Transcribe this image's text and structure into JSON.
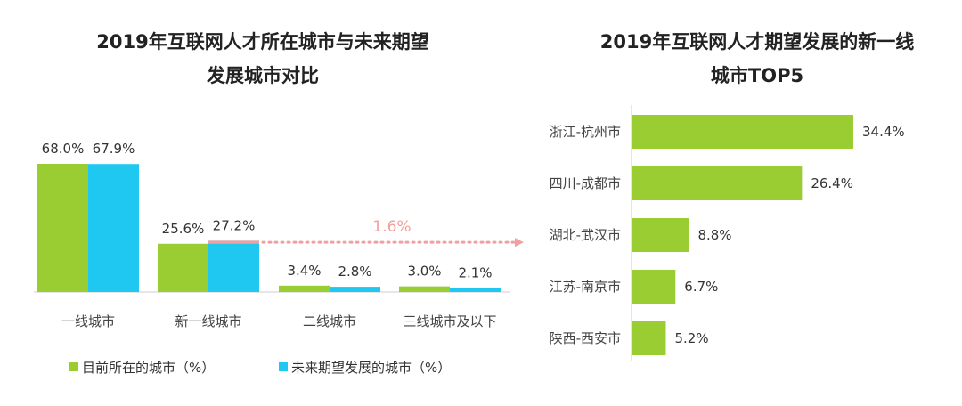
{
  "chart_data": [
    {
      "type": "bar",
      "title_lines": [
        "2019年互联网人才所在城市与未来期望",
        "发展城市对比"
      ],
      "categories": [
        "一线城市",
        "新一线城市",
        "二线城市",
        "三线城市及以下"
      ],
      "series": [
        {
          "name": "目前所在的城市（%）",
          "values": [
            68.0,
            25.6,
            3.4,
            3.0
          ],
          "value_labels": [
            "68.0%",
            "25.6%",
            "3.4%",
            "3.0%"
          ],
          "color": "#9ACD32"
        },
        {
          "name": "未来期望发展的城市（%）",
          "values": [
            67.9,
            27.2,
            2.8,
            2.1
          ],
          "value_labels": [
            "67.9%",
            "27.2%",
            "2.8%",
            "2.1%"
          ],
          "color": "#1EC8F0"
        }
      ],
      "annotation": {
        "text": "1.6%",
        "category": "新一线城市",
        "color": "#F0A0A0"
      },
      "ylim": [
        0,
        70
      ],
      "legend": "bottom-left",
      "grid": false
    },
    {
      "type": "bar",
      "orientation": "horizontal",
      "title_lines": [
        "2019年互联网人才期望发展的新一线",
        "城市TOP5"
      ],
      "categories": [
        "浙江-杭州市",
        "四川-成都市",
        "湖北-武汉市",
        "江苏-南京市",
        "陕西-西安市"
      ],
      "values": [
        34.4,
        26.4,
        8.8,
        6.7,
        5.2
      ],
      "value_labels": [
        "34.4%",
        "26.4%",
        "8.8%",
        "6.7%",
        "5.2%"
      ],
      "color": "#9ACD32",
      "xlim": [
        0,
        40
      ],
      "grid": false
    }
  ]
}
